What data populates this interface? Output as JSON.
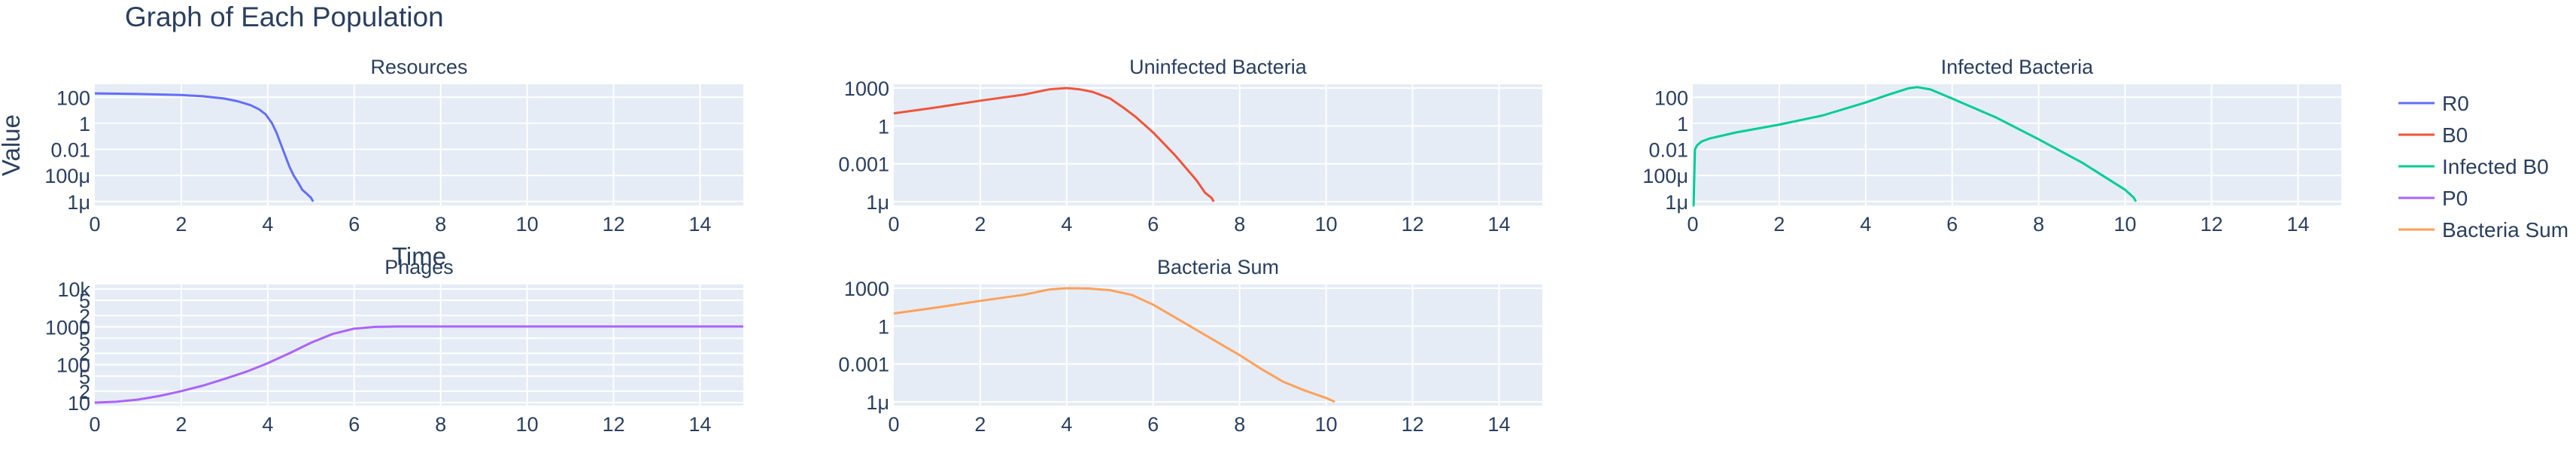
{
  "title": "Graph of Each Population",
  "y_axis_label": "Value",
  "x_axis_label": "Time",
  "legend": [
    {
      "name": "R0",
      "color": "#636efa"
    },
    {
      "name": "B0",
      "color": "#ef553b"
    },
    {
      "name": "Infected B0",
      "color": "#00cc96"
    },
    {
      "name": "P0",
      "color": "#ab63fa"
    },
    {
      "name": "Bacteria Sum",
      "color": "#ffa15a"
    }
  ],
  "colors": {
    "plot_bg": "#e5ecf6",
    "grid": "#ffffff",
    "text": "#2a3f5f"
  },
  "chart_data": [
    {
      "type": "line",
      "title": "Resources",
      "yscale": "log",
      "xlim": [
        0,
        15
      ],
      "ylim_log10": [
        -6.3,
        3
      ],
      "xticks": [
        "0",
        "2",
        "4",
        "6",
        "8",
        "10",
        "12",
        "14"
      ],
      "yticks": [
        {
          "label": "100",
          "log": 2
        },
        {
          "label": "1",
          "log": 0
        },
        {
          "label": "0.01",
          "log": -2
        },
        {
          "label": "100μ",
          "log": -4
        },
        {
          "label": "1μ",
          "log": -6
        }
      ],
      "series": [
        {
          "name": "R0",
          "color": "#636efa",
          "x": [
            0,
            1,
            2,
            2.5,
            3,
            3.3,
            3.6,
            3.8,
            3.95,
            4.1,
            4.2,
            4.35,
            4.5,
            4.6,
            4.7,
            4.8,
            4.9,
            5.0,
            5.05
          ],
          "y": [
            200,
            180,
            150,
            120,
            80,
            50,
            25,
            12,
            5,
            1,
            0.2,
            0.01,
            0.0005,
            0.0001,
            3e-05,
            8e-06,
            4e-06,
            2e-06,
            1e-06
          ]
        }
      ]
    },
    {
      "type": "line",
      "title": "Uninfected Bacteria",
      "yscale": "log",
      "xlim": [
        0,
        15
      ],
      "ylim_log10": [
        -6.3,
        3.3
      ],
      "xticks": [
        "0",
        "2",
        "4",
        "6",
        "8",
        "10",
        "12",
        "14"
      ],
      "yticks": [
        {
          "label": "1000",
          "log": 3
        },
        {
          "label": "1",
          "log": 0
        },
        {
          "label": "0.001",
          "log": -3
        },
        {
          "label": "1μ",
          "log": -6
        }
      ],
      "series": [
        {
          "name": "B0",
          "color": "#ef553b",
          "x": [
            0,
            1,
            2,
            3,
            3.6,
            4,
            4.3,
            4.6,
            5,
            5.3,
            5.6,
            6,
            6.5,
            7,
            7.2,
            7.35,
            7.4
          ],
          "y": [
            10,
            30,
            100,
            300,
            800,
            1000,
            800,
            500,
            150,
            30,
            5,
            0.3,
            0.005,
            5e-05,
            5e-06,
            2e-06,
            1e-06
          ]
        }
      ]
    },
    {
      "type": "line",
      "title": "Infected Bacteria",
      "yscale": "log",
      "xlim": [
        0,
        15
      ],
      "ylim_log10": [
        -6.3,
        3
      ],
      "xticks": [
        "0",
        "2",
        "4",
        "6",
        "8",
        "10",
        "12",
        "14"
      ],
      "yticks": [
        {
          "label": "100",
          "log": 2
        },
        {
          "label": "1",
          "log": 0
        },
        {
          "label": "0.01",
          "log": -2
        },
        {
          "label": "100μ",
          "log": -4
        },
        {
          "label": "1μ",
          "log": -6
        }
      ],
      "series": [
        {
          "name": "Infected B0",
          "color": "#00cc96",
          "x": [
            0,
            0.02,
            0.05,
            0.1,
            0.2,
            0.4,
            1,
            2,
            3,
            4,
            4.5,
            5,
            5.2,
            5.5,
            6,
            7,
            8,
            9,
            10,
            10.2,
            10.25
          ],
          "y": [
            5e-07,
            5e-07,
            0.01,
            0.02,
            0.04,
            0.07,
            0.2,
            0.8,
            4,
            40,
            150,
            500,
            600,
            400,
            80,
            3,
            0.06,
            0.001,
            8e-06,
            2e-06,
            1e-06
          ]
        }
      ]
    },
    {
      "type": "line",
      "title": "Phages",
      "yscale": "log",
      "xlim": [
        0,
        15
      ],
      "ylim_log10": [
        0.92,
        4.12
      ],
      "xticks": [
        "0",
        "2",
        "4",
        "6",
        "8",
        "10",
        "12",
        "14"
      ],
      "yticks": [
        {
          "label": "10k",
          "log": 4
        },
        {
          "label": "5",
          "log": 3.7
        },
        {
          "label": "2",
          "log": 3.3
        },
        {
          "label": "1000",
          "log": 3
        },
        {
          "label": "5",
          "log": 2.7
        },
        {
          "label": "2",
          "log": 2.3
        },
        {
          "label": "100",
          "log": 2
        },
        {
          "label": "5",
          "log": 1.7
        },
        {
          "label": "2",
          "log": 1.3
        },
        {
          "label": "10",
          "log": 1
        }
      ],
      "series": [
        {
          "name": "P0",
          "color": "#ab63fa",
          "x": [
            0,
            0.5,
            1,
            1.5,
            2,
            2.5,
            3,
            3.5,
            4,
            4.5,
            5,
            5.5,
            6,
            6.5,
            7,
            8,
            10,
            12,
            15
          ],
          "y": [
            10,
            10.5,
            12,
            15,
            20,
            28,
            42,
            65,
            110,
            200,
            380,
            650,
            900,
            1000,
            1020,
            1020,
            1020,
            1020,
            1020
          ]
        }
      ]
    },
    {
      "type": "line",
      "title": "Bacteria Sum",
      "yscale": "log",
      "xlim": [
        0,
        15
      ],
      "ylim_log10": [
        -6.3,
        3.3
      ],
      "xticks": [
        "0",
        "2",
        "4",
        "6",
        "8",
        "10",
        "12",
        "14"
      ],
      "yticks": [
        {
          "label": "1000",
          "log": 3
        },
        {
          "label": "1",
          "log": 0
        },
        {
          "label": "0.001",
          "log": -3
        },
        {
          "label": "1μ",
          "log": -6
        }
      ],
      "series": [
        {
          "name": "Bacteria Sum",
          "color": "#ffa15a",
          "x": [
            0,
            1,
            2,
            3,
            3.6,
            4,
            4.5,
            5,
            5.5,
            6,
            6.5,
            7,
            7.5,
            8,
            8.5,
            9,
            9.5,
            10,
            10.15,
            10.2
          ],
          "y": [
            10,
            30,
            100,
            300,
            800,
            1000,
            950,
            700,
            300,
            50,
            5,
            0.5,
            0.05,
            0.005,
            0.0004,
            4e-05,
            8e-06,
            2e-06,
            1.2e-06,
            1e-06
          ]
        }
      ]
    }
  ]
}
